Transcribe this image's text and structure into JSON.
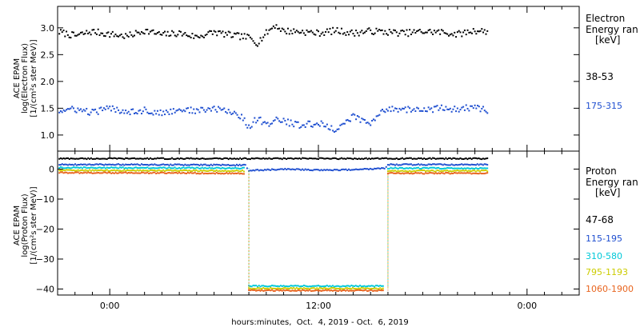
{
  "chart_data": [
    {
      "type": "scatter",
      "ylabel_lines": [
        "ACE EPAM",
        "log(Electron Flux)",
        "[1/(cm²s ster MeV)]"
      ],
      "ylim": [
        0.7,
        3.4
      ],
      "yticks": [
        "1.0",
        "1.5",
        "2.0",
        "2.5",
        "3.0"
      ],
      "ytick_values": [
        1.0,
        1.5,
        2.0,
        2.5,
        3.0
      ],
      "legend_title": [
        "Electron",
        "Energy ran",
        "[keV]"
      ],
      "series": [
        {
          "name": "38-53",
          "color": "#000000",
          "points": [
            {
              "x": -2.9,
              "y": 2.92
            },
            {
              "x": -2.0,
              "y": 2.85
            },
            {
              "x": -1.0,
              "y": 2.93
            },
            {
              "x": 0.0,
              "y": 2.88
            },
            {
              "x": 1.0,
              "y": 2.84
            },
            {
              "x": 2.0,
              "y": 2.95
            },
            {
              "x": 3.0,
              "y": 2.87
            },
            {
              "x": 4.0,
              "y": 2.9
            },
            {
              "x": 5.0,
              "y": 2.83
            },
            {
              "x": 6.0,
              "y": 2.92
            },
            {
              "x": 7.0,
              "y": 2.86
            },
            {
              "x": 8.0,
              "y": 2.82
            },
            {
              "x": 8.5,
              "y": 2.72
            },
            {
              "x": 9.0,
              "y": 2.9
            },
            {
              "x": 9.5,
              "y": 3.05
            },
            {
              "x": 10.0,
              "y": 2.94
            },
            {
              "x": 11.0,
              "y": 2.93
            },
            {
              "x": 12.0,
              "y": 2.9
            },
            {
              "x": 13.0,
              "y": 2.95
            },
            {
              "x": 14.0,
              "y": 2.9
            },
            {
              "x": 15.0,
              "y": 2.94
            },
            {
              "x": 16.0,
              "y": 2.92
            },
            {
              "x": 17.0,
              "y": 2.9
            },
            {
              "x": 18.0,
              "y": 2.93
            },
            {
              "x": 19.0,
              "y": 2.92
            },
            {
              "x": 20.0,
              "y": 2.88
            },
            {
              "x": 21.0,
              "y": 2.95
            },
            {
              "x": 21.8,
              "y": 2.93
            }
          ]
        },
        {
          "name": "175-315",
          "color": "#1f4fd0",
          "points": [
            {
              "x": -2.9,
              "y": 1.45
            },
            {
              "x": -2.0,
              "y": 1.48
            },
            {
              "x": -1.0,
              "y": 1.42
            },
            {
              "x": 0.0,
              "y": 1.5
            },
            {
              "x": 1.0,
              "y": 1.44
            },
            {
              "x": 2.0,
              "y": 1.46
            },
            {
              "x": 3.0,
              "y": 1.4
            },
            {
              "x": 4.0,
              "y": 1.48
            },
            {
              "x": 5.0,
              "y": 1.45
            },
            {
              "x": 6.0,
              "y": 1.49
            },
            {
              "x": 7.0,
              "y": 1.43
            },
            {
              "x": 7.5,
              "y": 1.36
            },
            {
              "x": 8.0,
              "y": 1.15
            },
            {
              "x": 8.5,
              "y": 1.32
            },
            {
              "x": 9.0,
              "y": 1.18
            },
            {
              "x": 9.5,
              "y": 1.3
            },
            {
              "x": 10.0,
              "y": 1.25
            },
            {
              "x": 11.0,
              "y": 1.18
            },
            {
              "x": 12.0,
              "y": 1.22
            },
            {
              "x": 13.0,
              "y": 1.1
            },
            {
              "x": 13.6,
              "y": 1.24
            },
            {
              "x": 14.0,
              "y": 1.35
            },
            {
              "x": 15.0,
              "y": 1.2
            },
            {
              "x": 15.6,
              "y": 1.42
            },
            {
              "x": 16.0,
              "y": 1.5
            },
            {
              "x": 17.0,
              "y": 1.48
            },
            {
              "x": 18.0,
              "y": 1.46
            },
            {
              "x": 19.0,
              "y": 1.5
            },
            {
              "x": 20.0,
              "y": 1.48
            },
            {
              "x": 21.0,
              "y": 1.52
            },
            {
              "x": 21.8,
              "y": 1.45
            }
          ]
        }
      ]
    },
    {
      "type": "scatter",
      "ylabel_lines": [
        "ACE EPAM",
        "log(Proton Flux)",
        "[1/(cm²s ster MeV)]"
      ],
      "ylim": [
        -42,
        6
      ],
      "yticks": [
        "0",
        "−10",
        "−20",
        "−30",
        "−40"
      ],
      "ytick_values": [
        0,
        -10,
        -20,
        -30,
        -40
      ],
      "legend_title": [
        "Proton",
        "Energy ran",
        "[keV]"
      ],
      "series": [
        {
          "name": "47-68",
          "color": "#000000",
          "points": [
            {
              "x": -2.9,
              "y": 3.5
            },
            {
              "x": 1.0,
              "y": 3.5
            },
            {
              "x": 5.0,
              "y": 3.5
            },
            {
              "x": 8.0,
              "y": 3.5
            },
            {
              "x": 12.0,
              "y": 3.5
            },
            {
              "x": 16.0,
              "y": 3.5
            },
            {
              "x": 18.5,
              "y": 3.5
            },
            {
              "x": 20.0,
              "y": 3.5
            },
            {
              "x": 21.8,
              "y": 3.5
            }
          ]
        },
        {
          "name": "115-195",
          "color": "#1f4fd0",
          "points": [
            {
              "x": -2.9,
              "y": 1.5
            },
            {
              "x": 1.0,
              "y": 1.5
            },
            {
              "x": 5.0,
              "y": 1.4
            },
            {
              "x": 7.8,
              "y": 1.3
            },
            {
              "x": 8.0,
              "y": -0.5
            },
            {
              "x": 10.0,
              "y": 0.0
            },
            {
              "x": 12.0,
              "y": -0.3
            },
            {
              "x": 14.0,
              "y": -0.2
            },
            {
              "x": 15.8,
              "y": 0.2
            },
            {
              "x": 16.0,
              "y": 1.5
            },
            {
              "x": 18.0,
              "y": 1.5
            },
            {
              "x": 20.0,
              "y": 1.5
            },
            {
              "x": 21.8,
              "y": 1.5
            }
          ]
        },
        {
          "name": "310-580",
          "color": "#00c8d8",
          "points": [
            {
              "x": -2.9,
              "y": 0.5
            },
            {
              "x": 3.0,
              "y": 0.4
            },
            {
              "x": 7.8,
              "y": 0.3
            },
            {
              "x": 8.0,
              "y": -39.0
            },
            {
              "x": 12.0,
              "y": -39.0
            },
            {
              "x": 15.8,
              "y": -39.0
            },
            {
              "x": 16.0,
              "y": 0.3
            },
            {
              "x": 19.0,
              "y": 0.3
            },
            {
              "x": 21.8,
              "y": 0.3
            }
          ]
        },
        {
          "name": "795-1193",
          "color": "#cccc00",
          "points": [
            {
              "x": -2.9,
              "y": -0.4
            },
            {
              "x": 3.0,
              "y": -0.5
            },
            {
              "x": 7.8,
              "y": -0.6
            },
            {
              "x": 8.0,
              "y": -39.8
            },
            {
              "x": 12.0,
              "y": -39.8
            },
            {
              "x": 15.8,
              "y": -39.8
            },
            {
              "x": 16.0,
              "y": -0.6
            },
            {
              "x": 19.0,
              "y": -0.6
            },
            {
              "x": 21.8,
              "y": -0.6
            }
          ]
        },
        {
          "name": "1060-1900",
          "color": "#e8641e",
          "points": [
            {
              "x": -2.9,
              "y": -1.2
            },
            {
              "x": 3.0,
              "y": -1.3
            },
            {
              "x": 7.8,
              "y": -1.4
            },
            {
              "x": 8.0,
              "y": -40.5
            },
            {
              "x": 12.0,
              "y": -40.5
            },
            {
              "x": 15.8,
              "y": -40.5
            },
            {
              "x": 16.0,
              "y": -1.4
            },
            {
              "x": 19.0,
              "y": -1.4
            },
            {
              "x": 21.8,
              "y": -1.4
            }
          ]
        }
      ]
    }
  ],
  "x_axis": {
    "xlim": [
      -3,
      27
    ],
    "tick_values": [
      0,
      12,
      24
    ],
    "tick_labels": [
      "0:00",
      "12:00",
      "0:00"
    ],
    "minor_tick_values": [
      -2,
      -1,
      1,
      2,
      3,
      4,
      5,
      6,
      7,
      8,
      9,
      10,
      11,
      13,
      14,
      15,
      16,
      17,
      18,
      19,
      20,
      21,
      22,
      23,
      25,
      26
    ],
    "label": "hours:minutes,  Oct.  4, 2019 - Oct.  6, 2019"
  }
}
